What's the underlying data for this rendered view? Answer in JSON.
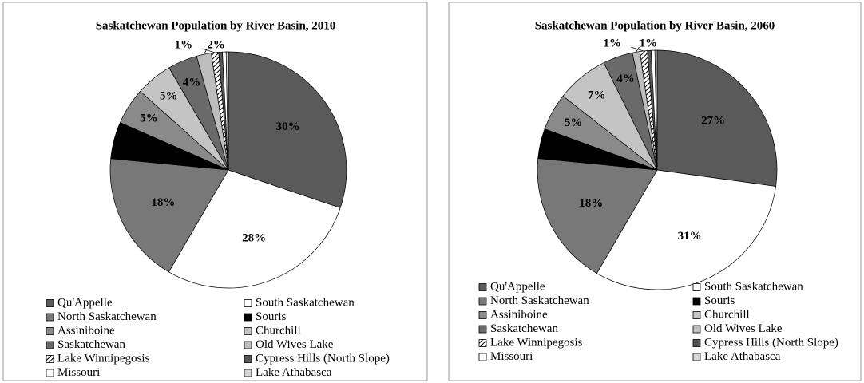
{
  "chart_data": [
    {
      "type": "pie",
      "title": "Saskatchewan Population by River Basin, 2010",
      "categories": [
        "Qu'Appelle",
        "South Saskatchewan",
        "North Saskatchewan",
        "Souris",
        "Assiniboine",
        "Churchill",
        "Saskatchewan",
        "Old Wives Lake",
        "Lake Winnipegosis",
        "Cypress Hills (North Slope)",
        "Missouri",
        "Lake Athabasca"
      ],
      "values": [
        30,
        28,
        18,
        5,
        5,
        5,
        4,
        2,
        1,
        0.5,
        0.5,
        0.3
      ],
      "value_labels": [
        "30%",
        "28%",
        "18%",
        "5%",
        "5%",
        "5%",
        "4%",
        "2%",
        "1%",
        null,
        null,
        null
      ],
      "colors": [
        "#5a5a5a",
        "#ffffff",
        "#787878",
        "#000000",
        "#8a8a8a",
        "#c4c4c4",
        "#6a6a6a",
        "#bdbdbd",
        "#ffffff",
        "#555555",
        "#ffffff",
        "#d6d6d6"
      ],
      "fill_patterns": [
        "solid",
        "solid",
        "solid",
        "solid",
        "solid",
        "solid",
        "solid",
        "solid",
        "diagonal-hatch",
        "solid",
        "solid",
        "solid"
      ],
      "legend": "bottom"
    },
    {
      "type": "pie",
      "title": "Saskatchewan Population by River Basin, 2060",
      "categories": [
        "Qu'Appelle",
        "South Saskatchewan",
        "North Saskatchewan",
        "Souris",
        "Assiniboine",
        "Churchill",
        "Saskatchewan",
        "Old Wives Lake",
        "Lake Winnipegosis",
        "Cypress Hills (North Slope)",
        "Missouri",
        "Lake Athabasca"
      ],
      "values": [
        27,
        31,
        18,
        4,
        5,
        7,
        4,
        1,
        1,
        0.5,
        0.5,
        0.3
      ],
      "value_labels": [
        "27%",
        "31%",
        "18%",
        "4%",
        "5%",
        "7%",
        "4%",
        "1%",
        "1%",
        null,
        null,
        null
      ],
      "colors": [
        "#5a5a5a",
        "#ffffff",
        "#787878",
        "#000000",
        "#8a8a8a",
        "#c4c4c4",
        "#6a6a6a",
        "#bdbdbd",
        "#ffffff",
        "#555555",
        "#ffffff",
        "#d6d6d6"
      ],
      "fill_patterns": [
        "solid",
        "solid",
        "solid",
        "solid",
        "solid",
        "solid",
        "solid",
        "solid",
        "diagonal-hatch",
        "solid",
        "solid",
        "solid"
      ],
      "legend": "bottom"
    }
  ]
}
